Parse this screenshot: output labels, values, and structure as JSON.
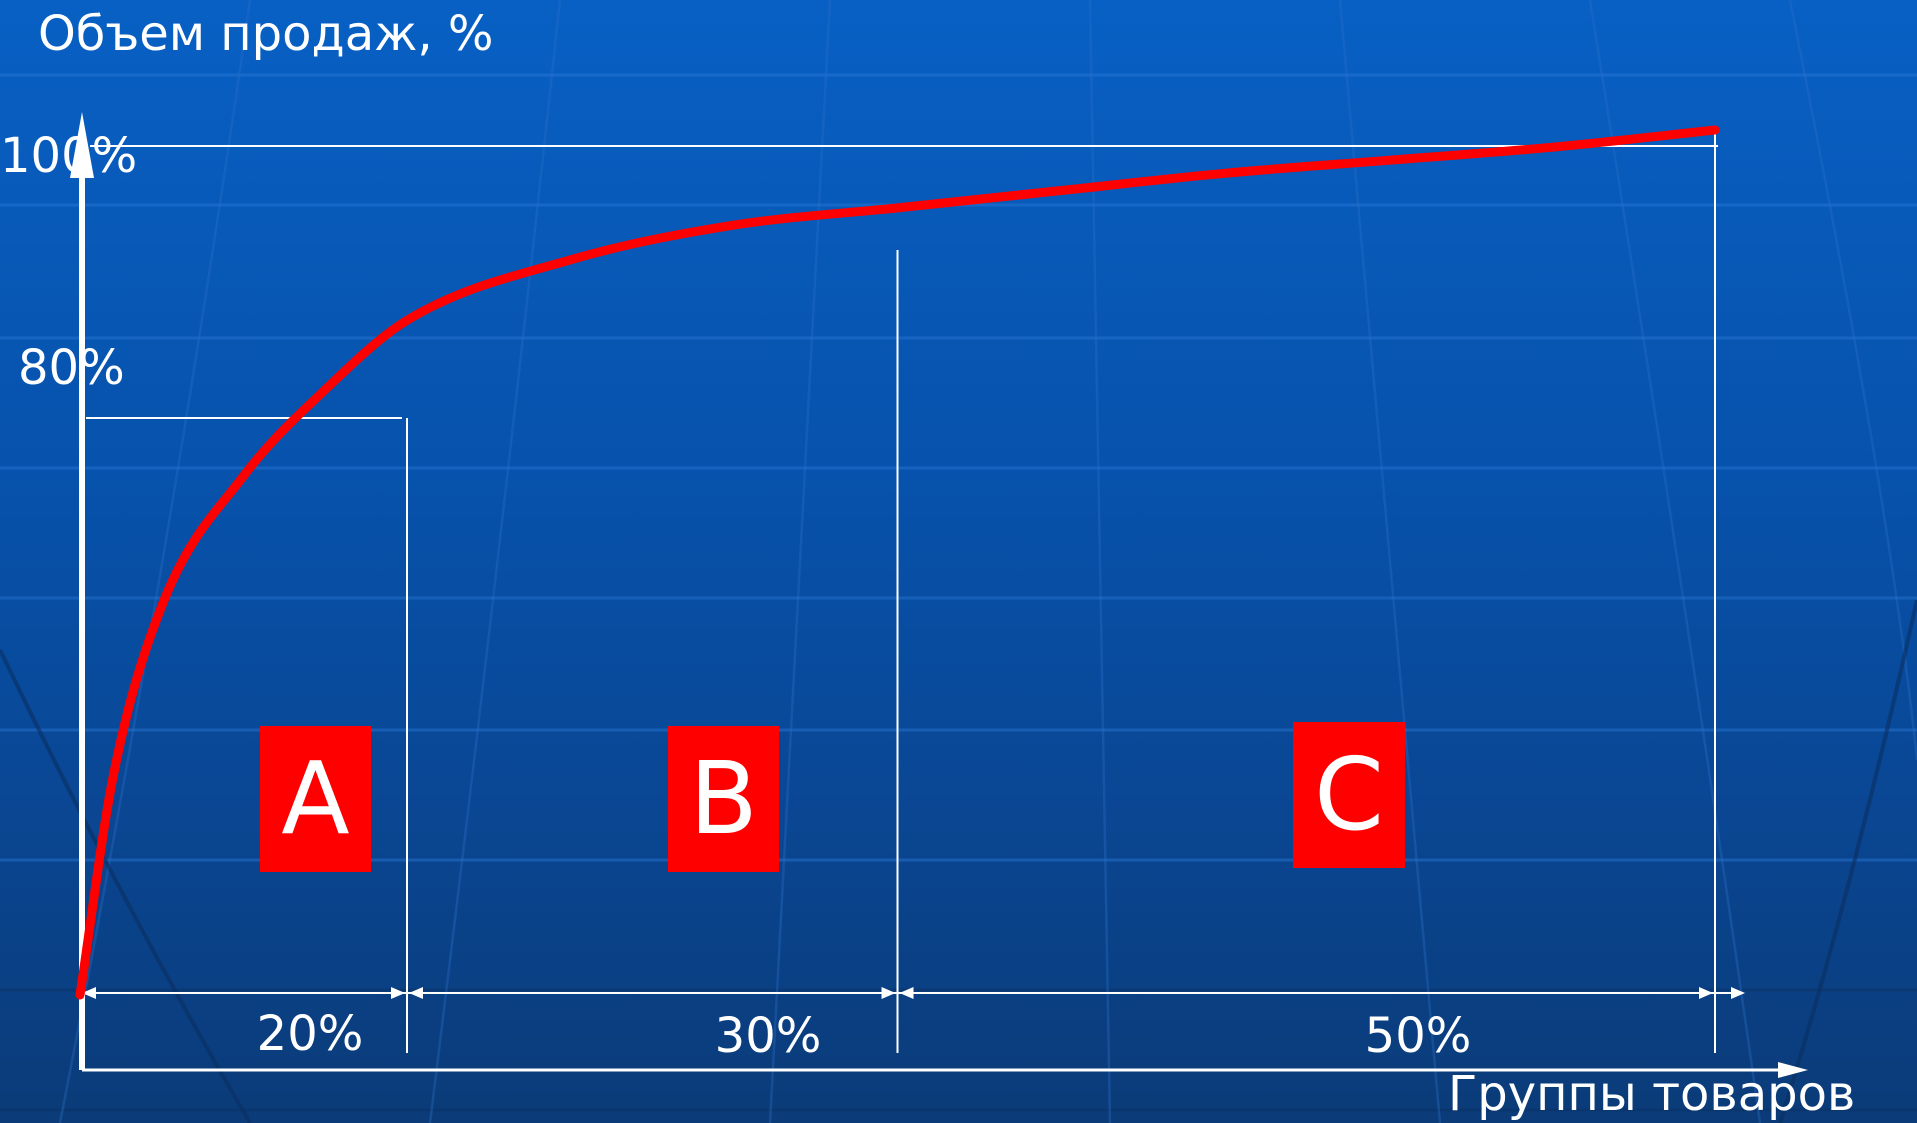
{
  "chart_data": {
    "type": "line",
    "ylabel": "Объем продаж, %",
    "xlabel": "Группы товаров",
    "y_ticks": [
      {
        "value": 100,
        "label": "100%"
      },
      {
        "value": 80,
        "label": "80%"
      }
    ],
    "series": [
      {
        "color": "#ff0000",
        "x": [
          0,
          2,
          5,
          10,
          15,
          20,
          30,
          40,
          50,
          60,
          70,
          80,
          90,
          100
        ],
        "y": [
          0,
          25,
          45,
          60,
          70,
          78,
          85,
          89,
          91,
          93,
          95,
          96.5,
          98,
          100
        ]
      }
    ],
    "segments": [
      {
        "class": "A",
        "share": 20,
        "label": "20%"
      },
      {
        "class": "B",
        "share": 30,
        "label": "30%"
      },
      {
        "class": "C",
        "share": 50,
        "label": "50%"
      }
    ],
    "xlim": [
      0,
      100
    ],
    "ylim": [
      0,
      100
    ],
    "grid": false,
    "colors": {
      "curve": "#ff0000",
      "axes": "#ffffff",
      "class_box": "#ff0000"
    }
  }
}
